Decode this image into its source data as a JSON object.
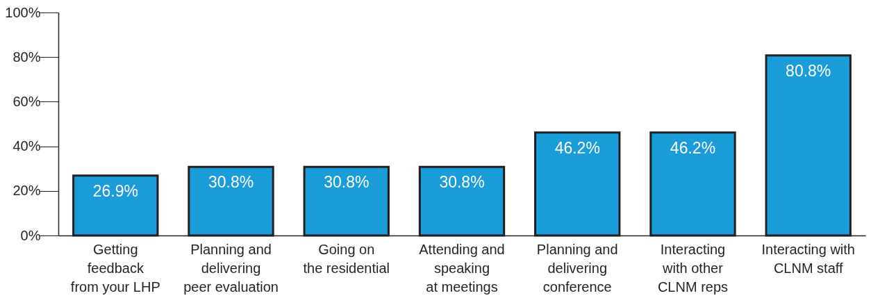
{
  "chart_data": {
    "type": "bar",
    "categories": [
      "Getting\nfeedback\nfrom your LHP",
      "Planning and\ndelivering\npeer evaluation",
      "Going on\nthe residential",
      "Attending and\nspeaking\nat meetings",
      "Planning and\ndelivering\nconference",
      "Interacting\nwith other\nCLNM reps",
      "Interacting with\nCLNM staff"
    ],
    "values": [
      26.9,
      30.8,
      30.8,
      30.8,
      46.2,
      46.2,
      80.8
    ],
    "value_labels": [
      "26.9%",
      "30.8%",
      "30.8%",
      "30.8%",
      "46.2%",
      "46.2%",
      "80.8%"
    ],
    "color": "#1a9cd8",
    "ylim": [
      0,
      100
    ],
    "yticks": [
      {
        "value": 0,
        "label": "0%"
      },
      {
        "value": 20,
        "label": "20%"
      },
      {
        "value": 40,
        "label": "40%"
      },
      {
        "value": 60,
        "label": "60%"
      },
      {
        "value": 80,
        "label": "80%"
      },
      {
        "value": 100,
        "label": "100%"
      }
    ],
    "grid": false
  }
}
